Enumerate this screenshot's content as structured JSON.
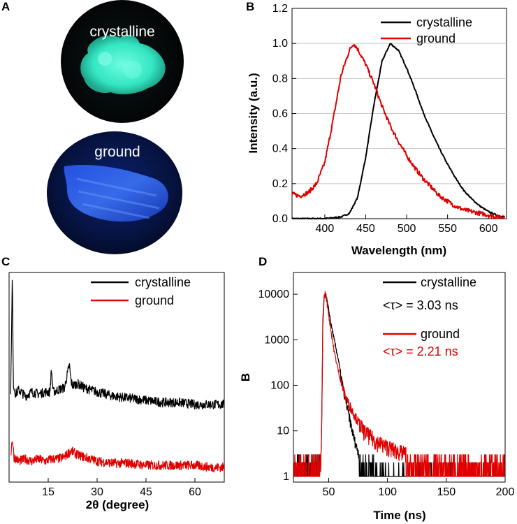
{
  "panels": {
    "A": {
      "letter": "A",
      "photo_top_label": "crystalline",
      "photo_bottom_label": "ground",
      "colors": {
        "crystalline_emission": "#35e6c2",
        "ground_emission": "#2a5cff"
      }
    }
  },
  "chart_data": [
    {
      "id": "B",
      "letter": "B",
      "type": "line",
      "xlabel": "Wavelength (nm)",
      "ylabel": "Intensity (a.u.)",
      "xlim": [
        360,
        622
      ],
      "ylim": [
        0,
        1.2
      ],
      "xticks": [
        400,
        450,
        500,
        550,
        600
      ],
      "yticks": [
        0.0,
        0.2,
        0.4,
        0.6,
        0.8,
        1.0,
        1.2
      ],
      "ytick_labels": [
        "0.0",
        "0.2",
        "0.4",
        "0.6",
        "0.8",
        "1.0",
        "1.2"
      ],
      "legend_position": "top-right",
      "series": [
        {
          "name": "crystalline",
          "color": "#000000",
          "x": [
            360,
            400,
            420,
            430,
            440,
            450,
            460,
            470,
            480,
            490,
            500,
            510,
            520,
            530,
            540,
            550,
            560,
            570,
            580,
            590,
            600,
            610,
            620
          ],
          "y": [
            0,
            0,
            0.01,
            0.03,
            0.12,
            0.35,
            0.65,
            0.9,
            1.0,
            0.96,
            0.86,
            0.74,
            0.61,
            0.5,
            0.4,
            0.31,
            0.23,
            0.16,
            0.11,
            0.07,
            0.04,
            0.02,
            0.01
          ]
        },
        {
          "name": "ground",
          "color": "#e00000",
          "x": [
            360,
            370,
            380,
            390,
            400,
            410,
            420,
            430,
            435,
            440,
            450,
            460,
            470,
            480,
            490,
            500,
            510,
            520,
            530,
            540,
            550,
            560,
            570,
            580,
            590,
            600,
            610,
            620
          ],
          "y": [
            0.14,
            0.13,
            0.15,
            0.2,
            0.32,
            0.56,
            0.82,
            0.96,
            1.0,
            0.97,
            0.88,
            0.77,
            0.64,
            0.53,
            0.44,
            0.36,
            0.29,
            0.23,
            0.18,
            0.13,
            0.1,
            0.07,
            0.05,
            0.04,
            0.03,
            0.02,
            0.01,
            0.01
          ]
        }
      ]
    },
    {
      "id": "C",
      "letter": "C",
      "type": "line",
      "xlabel": "2θ (degree)",
      "ylabel": "",
      "xlim": [
        3,
        69
      ],
      "ylim": [
        0,
        100
      ],
      "xticks": [
        15,
        30,
        45,
        60
      ],
      "legend_position": "top-right",
      "series": [
        {
          "name": "crystalline",
          "color": "#000000",
          "x": [
            3.5,
            4,
            4.3,
            5,
            6,
            8,
            10,
            12,
            14,
            15.5,
            16,
            16.5,
            18,
            20,
            21.5,
            22,
            22.5,
            24,
            26,
            28,
            30,
            35,
            40,
            45,
            50,
            55,
            60,
            65,
            69
          ],
          "y": [
            44,
            99,
            47,
            42,
            44,
            41,
            43,
            42,
            43,
            43,
            54,
            43,
            44,
            45,
            56,
            48,
            46,
            47,
            45,
            44,
            43,
            41,
            40,
            39,
            38,
            38,
            37,
            37,
            37
          ]
        },
        {
          "name": "ground",
          "color": "#e00000",
          "x": [
            3.5,
            4,
            4.5,
            6,
            8,
            10,
            12,
            14,
            16,
            18,
            20,
            22,
            24,
            26,
            28,
            30,
            35,
            40,
            45,
            50,
            55,
            60,
            65,
            69
          ],
          "y": [
            13,
            21,
            12,
            10,
            11,
            10,
            11,
            10,
            11,
            11,
            12,
            15,
            13,
            12,
            11,
            10,
            9,
            9,
            8,
            8,
            8,
            8,
            7,
            7
          ]
        }
      ]
    },
    {
      "id": "D",
      "letter": "D",
      "type": "line",
      "xlabel": "Time (ns)",
      "ylabel": "B",
      "xscale": "linear",
      "yscale": "log",
      "xlim": [
        20,
        200
      ],
      "ylim": [
        0.75,
        30000
      ],
      "xticks": [
        50,
        100,
        150,
        200
      ],
      "yticks": [
        1,
        10,
        100,
        1000,
        10000
      ],
      "ytick_labels": [
        "1",
        "10",
        "100",
        "1000",
        "10000"
      ],
      "legend_position": "top-right",
      "series": [
        {
          "name": "crystalline",
          "annotation": "<τ> = 3.03 ns",
          "color": "#000000",
          "x": [
            20,
            43,
            44,
            45,
            46,
            47,
            48,
            50,
            52,
            55,
            58,
            60,
            63,
            66,
            70,
            73,
            76,
            78,
            80,
            90,
            100,
            120,
            150,
            200
          ],
          "y": [
            1,
            1,
            10,
            2000,
            7000,
            10500,
            8500,
            4500,
            2200,
            900,
            400,
            180,
            70,
            30,
            10,
            5,
            3,
            1.5,
            1,
            1,
            1,
            1,
            1,
            1
          ]
        },
        {
          "name": "ground",
          "annotation": "<τ> = 2.21 ns",
          "color": "#e00000",
          "x": [
            20,
            43,
            44,
            45,
            46,
            47,
            48,
            50,
            52,
            55,
            58,
            60,
            63,
            66,
            70,
            75,
            80,
            90,
            100,
            110,
            120,
            130,
            140,
            150,
            160,
            170,
            180,
            200
          ],
          "y": [
            1,
            1,
            10,
            3000,
            8500,
            10500,
            8000,
            3500,
            1500,
            500,
            220,
            130,
            70,
            45,
            28,
            16,
            10,
            6,
            4.5,
            3.5,
            3,
            2.6,
            2.3,
            2.1,
            2,
            1.8,
            1.8,
            1.7
          ]
        }
      ]
    }
  ]
}
